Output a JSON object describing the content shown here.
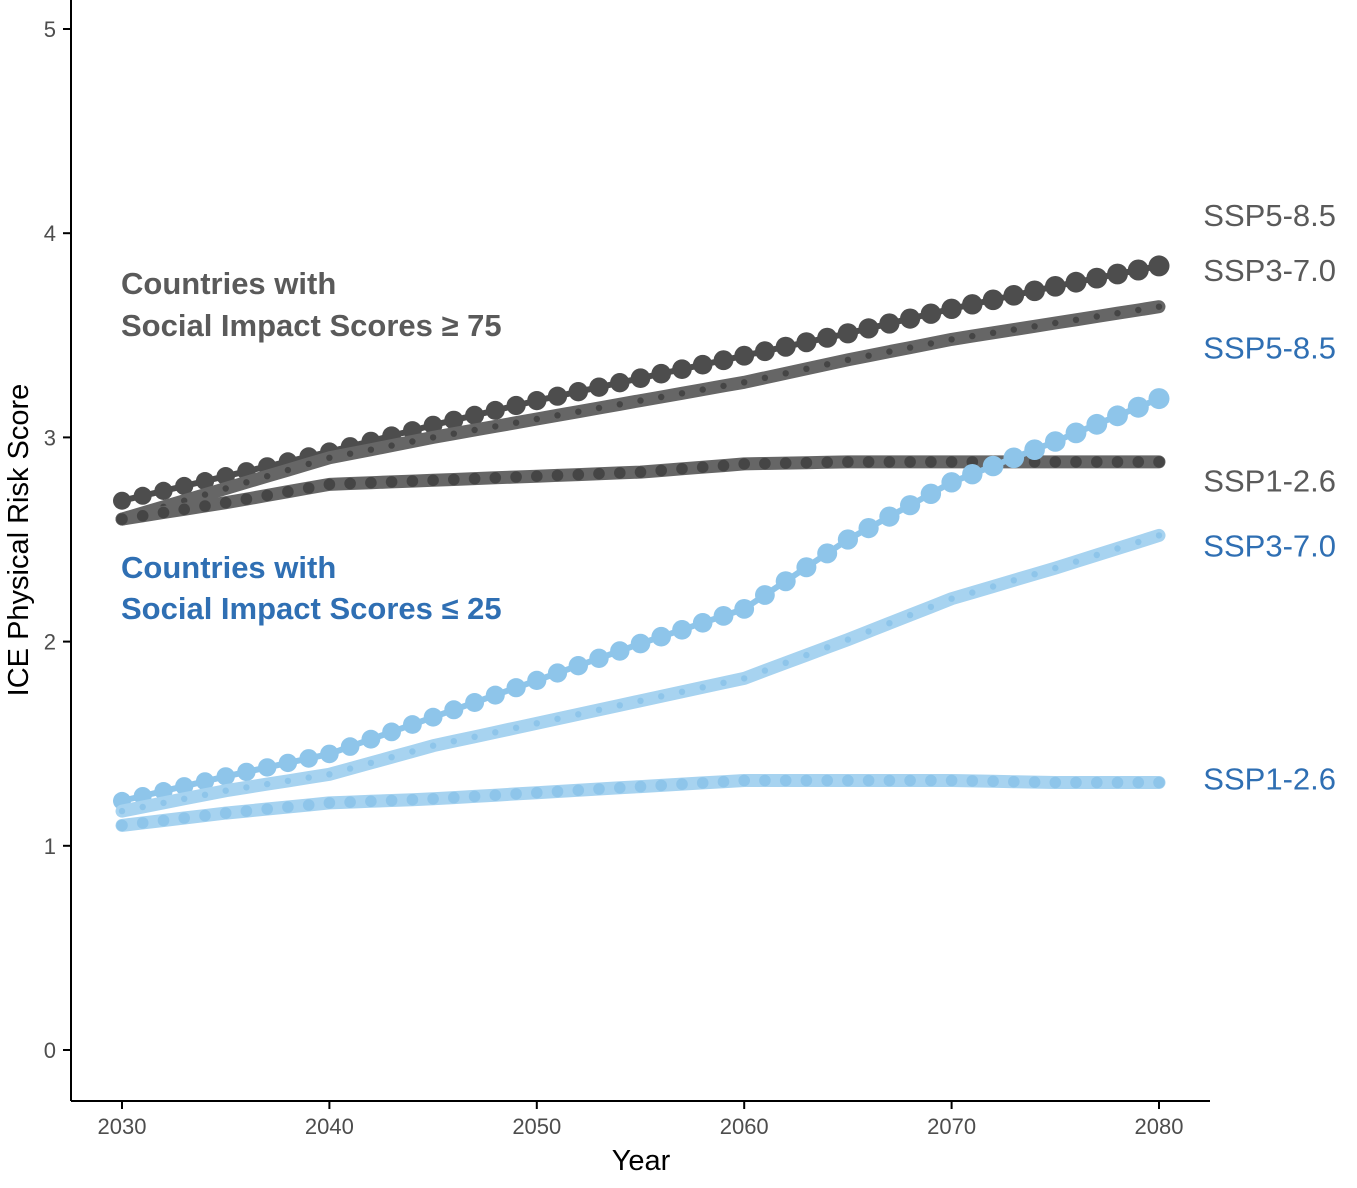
{
  "chart_data": {
    "type": "line",
    "title": "",
    "xlabel": "Year",
    "ylabel": "ICE Physical Risk Score",
    "xlim": [
      2027.5,
      2082.5
    ],
    "ylim": [
      -0.24,
      5.1
    ],
    "x_ticks": [
      "2030",
      "2040",
      "2050",
      "2060",
      "2070",
      "2080"
    ],
    "y_ticks": [
      "0",
      "1",
      "2",
      "3",
      "4",
      "5"
    ],
    "grid": false,
    "colors": {
      "high_group": "#4d4d4d",
      "high_group_label": "#5a5a5a",
      "low_group": "#8ec5ea",
      "low_group_label": "#2f6fb3"
    },
    "group_labels": [
      {
        "id": "high",
        "lines": [
          "Countries with",
          "Social Impact Scores ≥ 75"
        ]
      },
      {
        "id": "low",
        "lines": [
          "Countries with",
          "Social Impact Scores ≤ 25"
        ]
      }
    ],
    "series": [
      {
        "name": "SSP5-8.5",
        "group": "high",
        "style": "large-dots",
        "x": [
          2030,
          2035,
          2040,
          2045,
          2050,
          2055,
          2060,
          2065,
          2070,
          2075,
          2080
        ],
        "y": [
          2.69,
          2.81,
          2.93,
          3.06,
          3.18,
          3.29,
          3.4,
          3.51,
          3.63,
          3.74,
          3.84
        ]
      },
      {
        "name": "SSP3-7.0",
        "group": "high",
        "style": "band-small-dots",
        "x": [
          2030,
          2035,
          2040,
          2045,
          2050,
          2055,
          2060,
          2065,
          2070,
          2075,
          2080
        ],
        "y": [
          2.6,
          2.75,
          2.9,
          3.0,
          3.09,
          3.18,
          3.27,
          3.38,
          3.48,
          3.56,
          3.64
        ]
      },
      {
        "name": "SSP1-2.6",
        "group": "high",
        "style": "band-medium-dots",
        "x": [
          2030,
          2035,
          2040,
          2045,
          2050,
          2055,
          2060,
          2065,
          2070,
          2075,
          2080
        ],
        "y": [
          2.6,
          2.68,
          2.77,
          2.79,
          2.81,
          2.83,
          2.87,
          2.88,
          2.88,
          2.88,
          2.88
        ]
      },
      {
        "name": "SSP5-8.5",
        "group": "low",
        "style": "large-dots",
        "x": [
          2030,
          2035,
          2040,
          2045,
          2050,
          2055,
          2060,
          2065,
          2070,
          2075,
          2080
        ],
        "y": [
          1.22,
          1.34,
          1.45,
          1.63,
          1.81,
          1.99,
          2.16,
          2.5,
          2.78,
          2.98,
          3.19
        ]
      },
      {
        "name": "SSP3-7.0",
        "group": "low",
        "style": "band-small-dots",
        "x": [
          2030,
          2035,
          2040,
          2045,
          2050,
          2055,
          2060,
          2065,
          2070,
          2075,
          2080
        ],
        "y": [
          1.17,
          1.27,
          1.35,
          1.49,
          1.6,
          1.71,
          1.82,
          2.01,
          2.21,
          2.36,
          2.52
        ]
      },
      {
        "name": "SSP1-2.6",
        "group": "low",
        "style": "band-medium-dots",
        "x": [
          2030,
          2035,
          2040,
          2045,
          2050,
          2055,
          2060,
          2065,
          2070,
          2075,
          2080
        ],
        "y": [
          1.1,
          1.16,
          1.21,
          1.23,
          1.26,
          1.29,
          1.32,
          1.32,
          1.32,
          1.31,
          1.31
        ]
      }
    ],
    "end_labels": [
      {
        "text": "SSP5-8.5",
        "group": "high",
        "y": 4.09
      },
      {
        "text": "SSP3-7.0",
        "group": "high",
        "y": 3.82
      },
      {
        "text": "SSP5-8.5",
        "group": "low",
        "y": 3.44
      },
      {
        "text": "SSP1-2.6",
        "group": "high",
        "y": 2.79
      },
      {
        "text": "SSP3-7.0",
        "group": "low",
        "y": 2.47
      },
      {
        "text": "SSP1-2.6",
        "group": "low",
        "y": 1.33
      }
    ]
  }
}
